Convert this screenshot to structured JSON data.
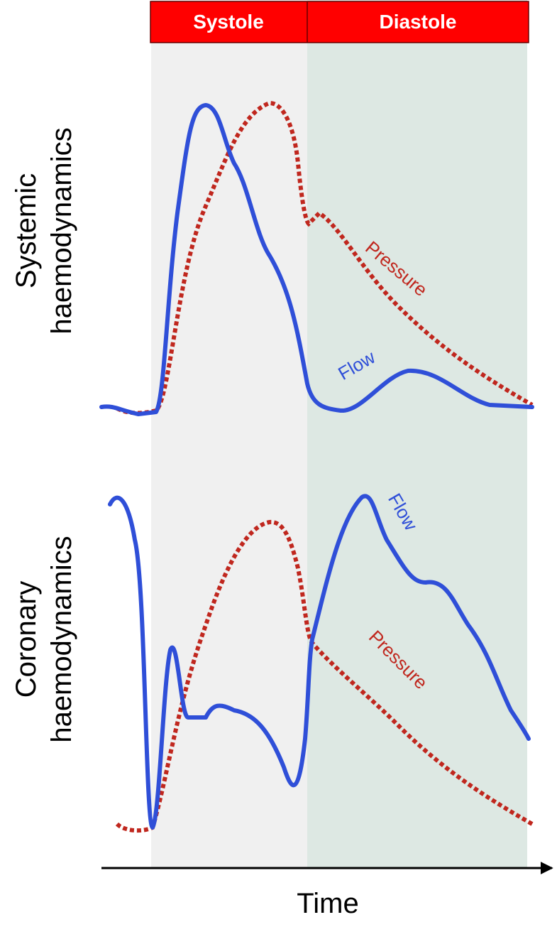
{
  "header": {
    "phases": [
      "Systole",
      "Diastole"
    ]
  },
  "panels": [
    {
      "title_lines": [
        "Systemic",
        "haemodynamics"
      ],
      "pressure_label": "Pressure",
      "flow_label": "Flow"
    },
    {
      "title_lines": [
        "Coronary",
        "haemodynamics"
      ],
      "pressure_label": "Pressure",
      "flow_label": "Flow"
    }
  ],
  "x_axis_label": "Time"
}
